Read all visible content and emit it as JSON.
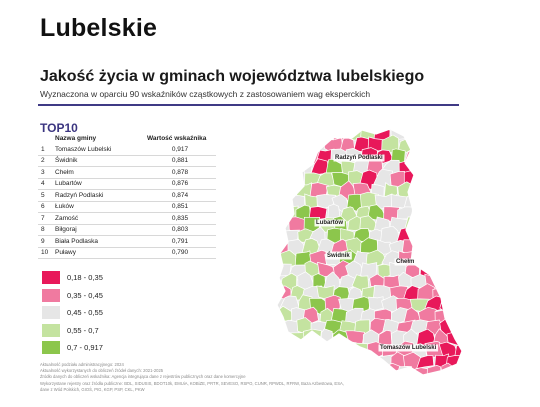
{
  "page": {
    "title": "Lubelskie",
    "heading": "Jakość życia w gminach województwa lubelskiego",
    "subheading": "Wyznaczona w oparciu 90 wskaźników cząstkowych z zastosowaniem wag eksperckich"
  },
  "top10": {
    "title": "TOP10",
    "col_name": "Nazwa gminy",
    "col_value": "Wartość wskaźnika",
    "rows": [
      {
        "rank": "1",
        "name": "Tomaszów Lubelski",
        "value": "0,917"
      },
      {
        "rank": "2",
        "name": "Świdnik",
        "value": "0,881"
      },
      {
        "rank": "3",
        "name": "Chełm",
        "value": "0,878"
      },
      {
        "rank": "4",
        "name": "Lubartów",
        "value": "0,876"
      },
      {
        "rank": "5",
        "name": "Radzyń Podlaski",
        "value": "0,874"
      },
      {
        "rank": "6",
        "name": "Łuków",
        "value": "0,851"
      },
      {
        "rank": "7",
        "name": "Zamość",
        "value": "0,835"
      },
      {
        "rank": "8",
        "name": "Biłgoraj",
        "value": "0,803"
      },
      {
        "rank": "9",
        "name": "Biała Podlaska",
        "value": "0,791"
      },
      {
        "rank": "10",
        "name": "Puławy",
        "value": "0,790"
      }
    ]
  },
  "legend": [
    {
      "label": "0,18 - 0,35",
      "color": "#e8185a"
    },
    {
      "label": "0,35 - 0,45",
      "color": "#f07aa0"
    },
    {
      "label": "0,45 - 0,55",
      "color": "#e6e6e6"
    },
    {
      "label": "0,55 - 0,7",
      "color": "#c4e3a0"
    },
    {
      "label": "0,7 - 0,917",
      "color": "#8cc64c"
    }
  ],
  "map": {
    "cities": [
      "Radzyń Podlaski",
      "Lubartów",
      "Świdnik",
      "Chełm",
      "Tomaszów Lubelski"
    ]
  },
  "footnotes": [
    "Aktualność podziału administracyjnego: 2024",
    "Aktualność wykorzystanych do obliczeń źródeł danych: 2021-2025",
    "Źródło danych do obliczeń wskaźnika: Agencja integrująca dane z rejestrów publicznych oraz dane komercyjne",
    "Wykorzystane rejestry oraz źródła publiczne: BDL, SIDUSIS, BDOT10k, EMUiA, KOBiZE, PRTR, SEVESO, RSPO, CUNR, RPWDL, RFRW, Baza Azbestowa, ESA,",
    "dane z Wód Polskich, GIOŚ, PIG, KGP, PSP, CKL, PKW"
  ]
}
